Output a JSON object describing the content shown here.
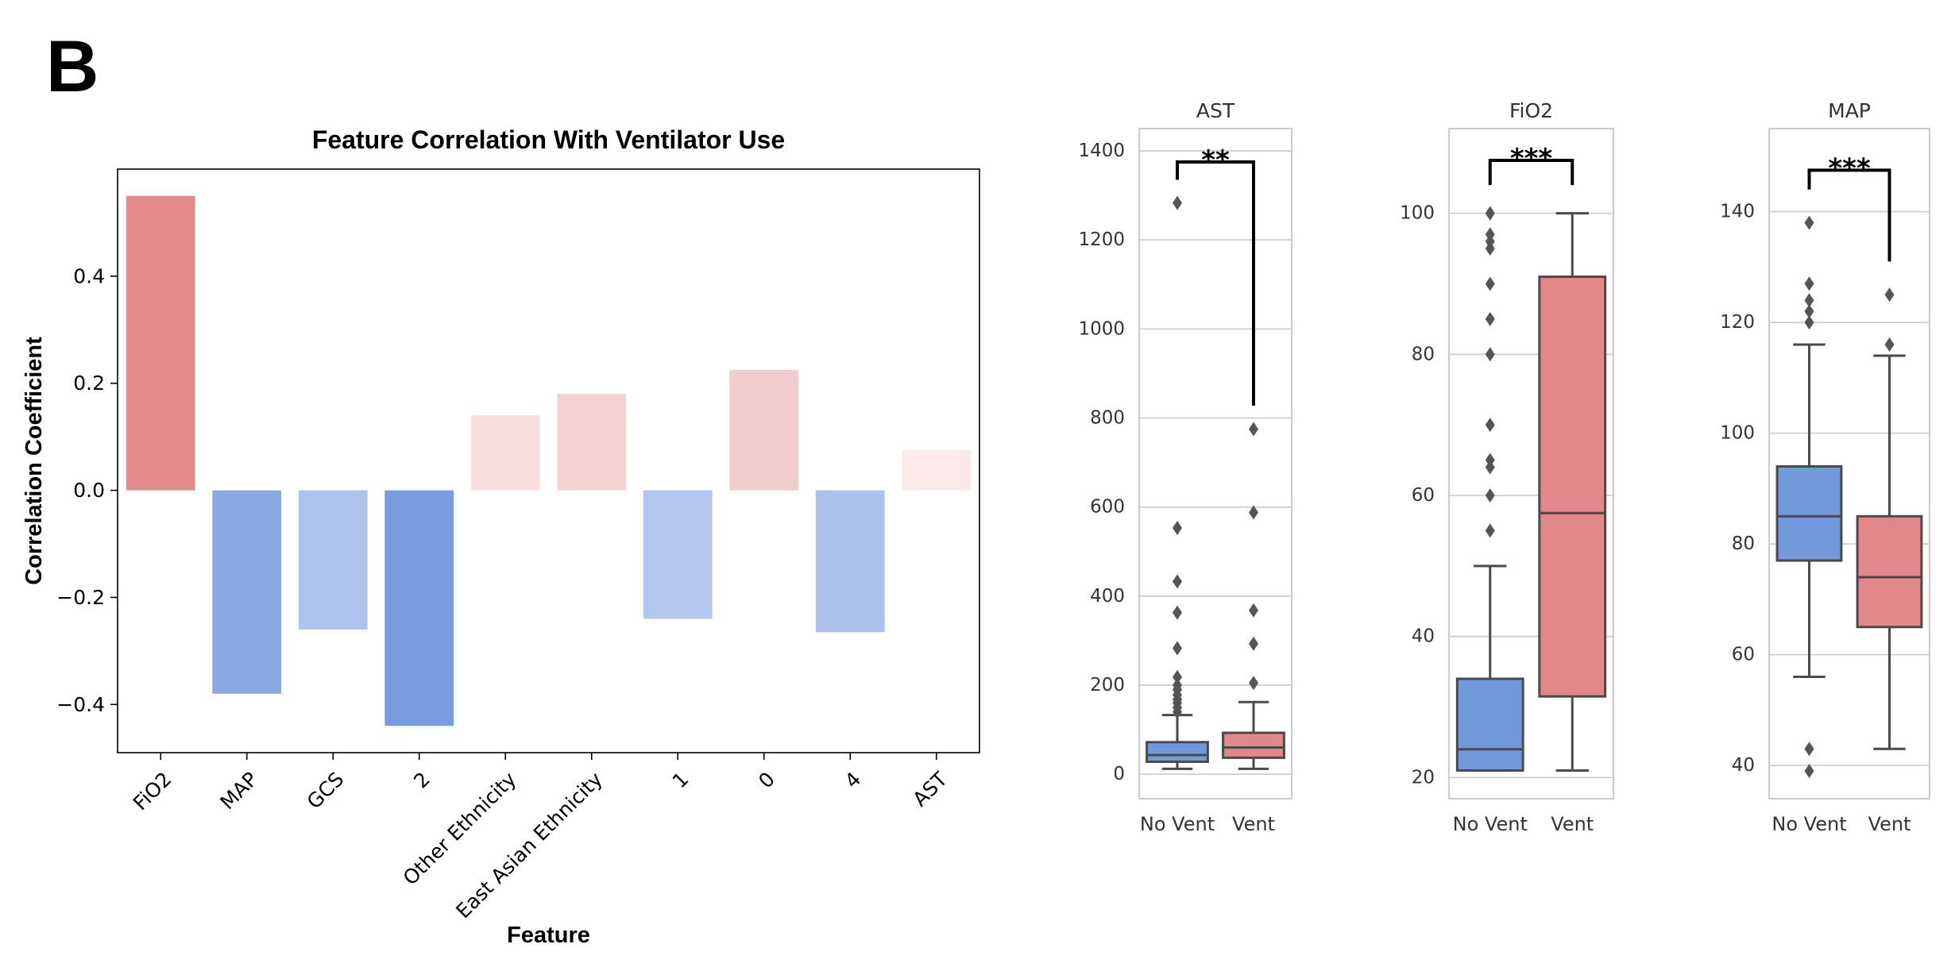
{
  "panel_label": "B",
  "colors": {
    "no_vent": "#7399dd",
    "vent": "#e2878a",
    "grid": "#cfcfcf",
    "box_line": "#4a4a4a",
    "bracket": "#000000"
  },
  "chart_data": [
    {
      "type": "bar",
      "title": "Feature Correlation With Ventilator Use",
      "xlabel": "Feature",
      "ylabel": "Correlation Coefficient",
      "categories": [
        "FiO2",
        "MAP",
        "GCS",
        "2",
        "Other Ethnicity",
        "East Asian Ethnicity",
        "1",
        "0",
        "4",
        "AST"
      ],
      "values": [
        0.55,
        -0.38,
        -0.26,
        -0.44,
        0.14,
        0.18,
        -0.24,
        0.225,
        -0.265,
        0.075
      ],
      "colors": [
        "#e38b8d",
        "#8aa9e3",
        "#adc2ec",
        "#779de0",
        "#f7dfdf",
        "#f3d2d2",
        "#b3c7ee",
        "#f1cdcd",
        "#abc0eb",
        "#faeaea"
      ],
      "ylim": [
        -0.49,
        0.6
      ],
      "yticks": [
        -0.4,
        -0.2,
        0.0,
        0.2,
        0.4
      ],
      "ytick_labels": [
        "−0.4",
        "−0.2",
        "0.0",
        "0.2",
        "0.4"
      ],
      "grid": false
    },
    {
      "type": "box",
      "title": "AST",
      "categories": [
        "No Vent",
        "Vent"
      ],
      "ylim": [
        -55,
        1450
      ],
      "yticks": [
        0,
        200,
        400,
        600,
        800,
        1000,
        1200,
        1400
      ],
      "ytick_labels": [
        "0",
        "200",
        "400",
        "600",
        "800",
        "1000",
        "1200",
        "1400"
      ],
      "grid": true,
      "boxes": [
        {
          "whisker_low": 12,
          "q1": 28,
          "median": 43,
          "q3": 72,
          "whisker_high": 133,
          "outliers": [
            140,
            150,
            160,
            168,
            178,
            190,
            200,
            218,
            283,
            363,
            433,
            553,
            1283
          ]
        },
        {
          "whisker_low": 12,
          "q1": 37,
          "median": 60,
          "q3": 93,
          "whisker_high": 162,
          "outliers": [
            205,
            293,
            368,
            588,
            775
          ]
        }
      ],
      "significance": {
        "label": "**",
        "left_y": 1335,
        "right_y": 828,
        "top_y": 1375
      }
    },
    {
      "type": "box",
      "title": "FiO2",
      "categories": [
        "No Vent",
        "Vent"
      ],
      "ylim": [
        17,
        112
      ],
      "yticks": [
        20,
        40,
        60,
        80,
        100
      ],
      "ytick_labels": [
        "20",
        "40",
        "60",
        "80",
        "100"
      ],
      "grid": true,
      "boxes": [
        {
          "whisker_low": 21,
          "q1": 21,
          "median": 24,
          "q3": 34,
          "whisker_high": 50,
          "outliers": [
            55,
            60,
            64,
            65,
            70,
            80,
            85,
            90,
            95,
            96,
            97,
            100,
            100
          ]
        },
        {
          "whisker_low": 21,
          "q1": 31.5,
          "median": 57.5,
          "q3": 91,
          "whisker_high": 100,
          "outliers": []
        }
      ],
      "significance": {
        "label": "***",
        "left_y": 104,
        "right_y": 104,
        "top_y": 107.5
      }
    },
    {
      "type": "box",
      "title": "MAP",
      "categories": [
        "No Vent",
        "Vent"
      ],
      "ylim": [
        34,
        155
      ],
      "yticks": [
        40,
        60,
        80,
        100,
        120,
        140
      ],
      "ytick_labels": [
        "40",
        "60",
        "80",
        "100",
        "120",
        "140"
      ],
      "grid": true,
      "boxes": [
        {
          "whisker_low": 56,
          "q1": 77,
          "median": 85,
          "q3": 94,
          "whisker_high": 116,
          "outliers": [
            39,
            43,
            120,
            122,
            124,
            127,
            138
          ]
        },
        {
          "whisker_low": 43,
          "q1": 65,
          "median": 74,
          "q3": 85,
          "whisker_high": 114,
          "outliers": [
            116,
            125
          ]
        }
      ],
      "significance": {
        "label": "***",
        "left_y": 144,
        "right_y": 131,
        "top_y": 147.5
      }
    }
  ]
}
